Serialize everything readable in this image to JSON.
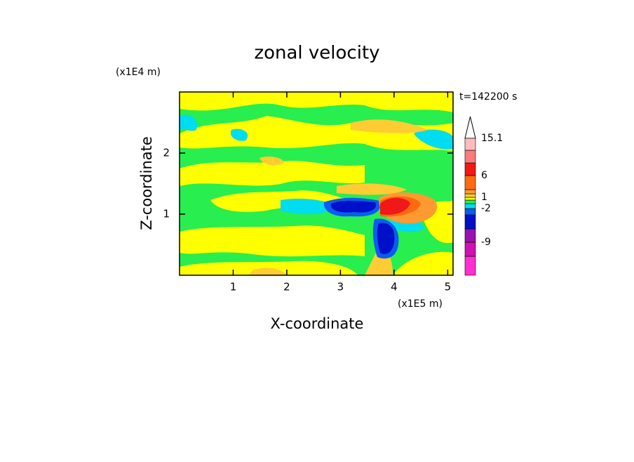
{
  "chart_data": {
    "type": "contour",
    "title": "zonal velocity",
    "x_label": "X-coordinate",
    "y_label": "Z-coordinate",
    "x_unit": "(x1E5 m)",
    "y_unit": "(x1E4 m)",
    "annotation": "t=142200 s",
    "xlim": [
      0,
      5.1
    ],
    "ylim": [
      0,
      3
    ],
    "xticks": [
      1,
      2,
      3,
      4,
      5
    ],
    "yticks": [
      1,
      2
    ],
    "colorbar": {
      "levels": [
        -15,
        -12,
        -9,
        -6,
        -3,
        -2,
        -1,
        0,
        1,
        2,
        3,
        6,
        9,
        12,
        15.1
      ],
      "colors": [
        "#ff2fcf",
        "#d010b0",
        "#9a10b0",
        "#0010c8",
        "#0a5cf0",
        "#00dcf0",
        "#28ee50",
        "#ffff00",
        "#ffcc33",
        "#ff9a30",
        "#ff6a10",
        "#f01818",
        "#ff7a7a",
        "#ffbcbc"
      ],
      "ticks": [
        15.1,
        6,
        1,
        -2,
        -9
      ]
    }
  }
}
